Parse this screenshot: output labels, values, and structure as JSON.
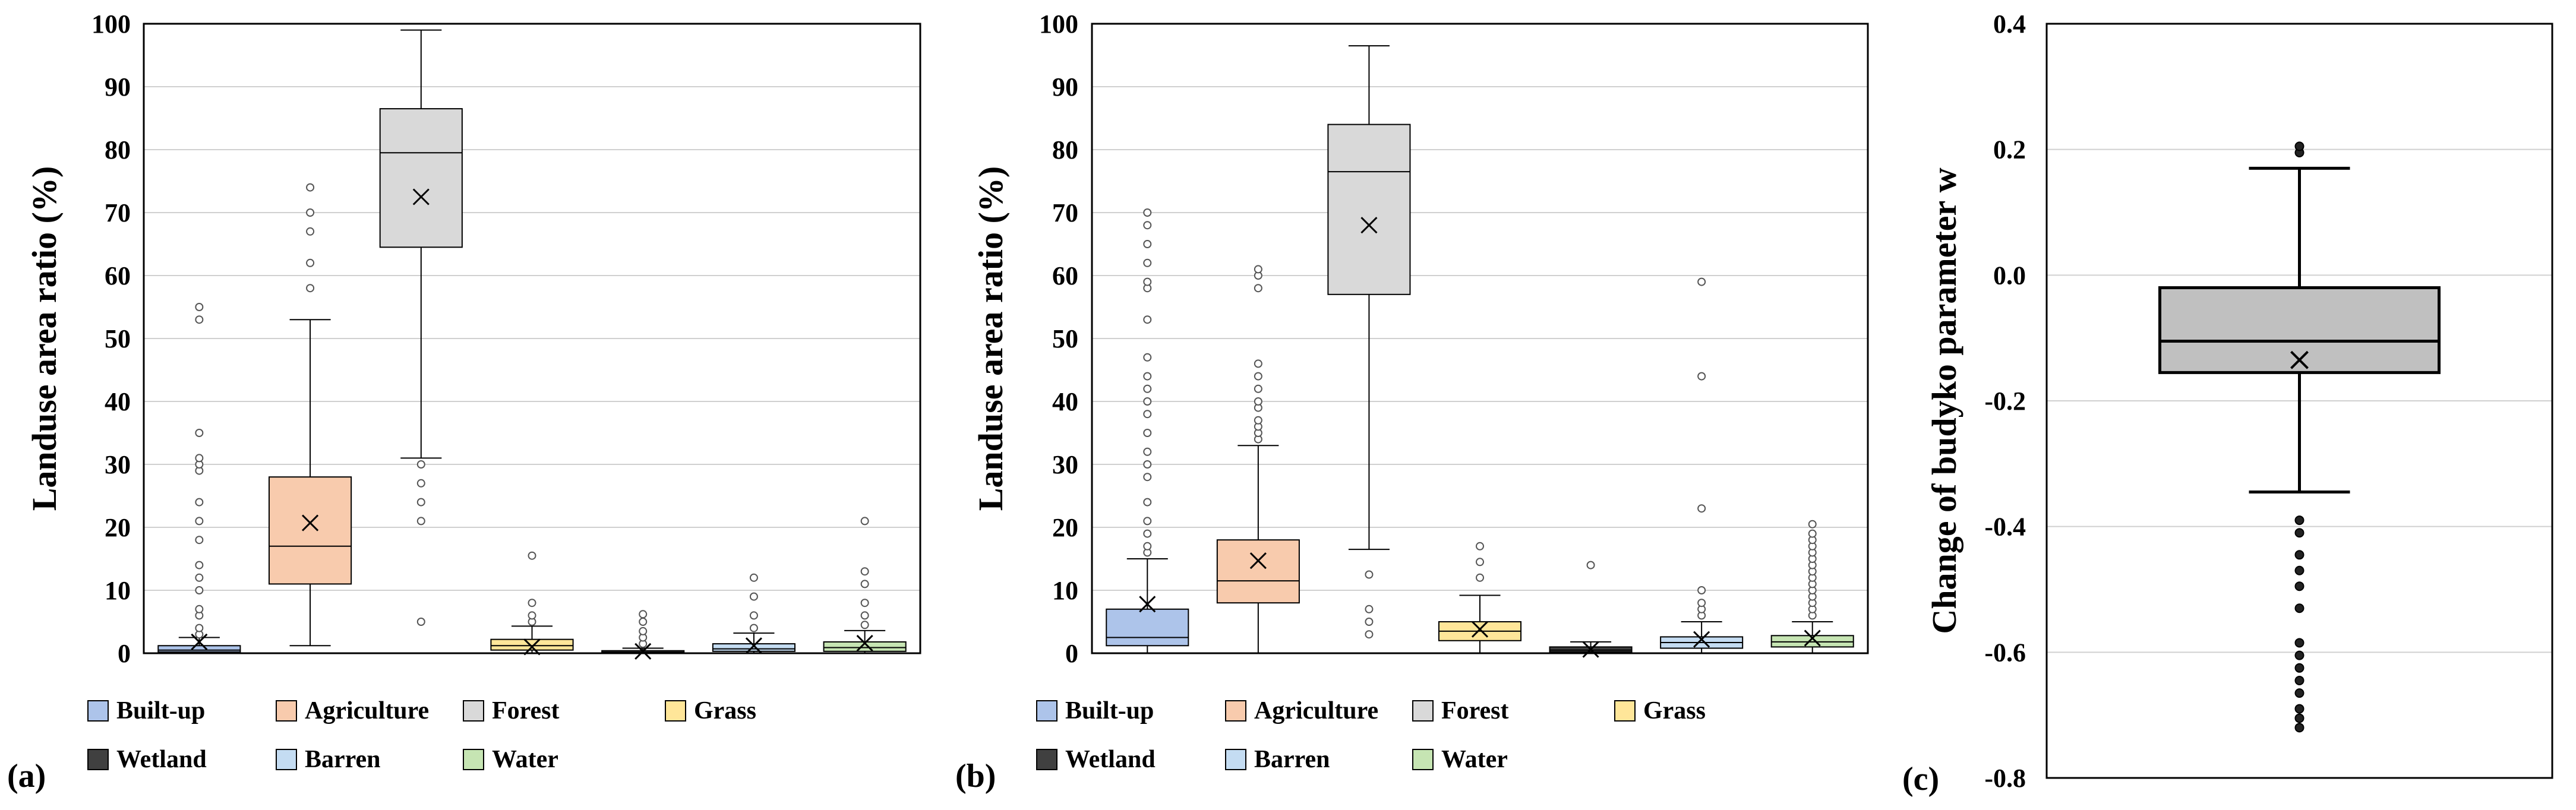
{
  "colors": {
    "Built-up": "#adc4ea",
    "Agriculture": "#f8cbad",
    "Forest": "#d9d9d9",
    "Grass": "#ffe699",
    "Wetland": "#404040",
    "Barren": "#c4dcf2",
    "Water": "#c6e5b3",
    "w_box": "#c0c0c0"
  },
  "chart_data": [
    {
      "panel_label": "(a)",
      "type": "box",
      "ylabel": "Landuse area ratio (%)",
      "ylim": [
        0,
        100
      ],
      "yticks": [
        0,
        10,
        20,
        30,
        40,
        50,
        60,
        70,
        80,
        90,
        100
      ],
      "grid": true,
      "legend_position": "bottom",
      "legend": [
        "Built-up",
        "Agriculture",
        "Forest",
        "Grass",
        "Wetland",
        "Barren",
        "Water"
      ],
      "series": [
        {
          "name": "Built-up",
          "min": 0,
          "q1": 0.2,
          "median": 0.5,
          "q3": 1.2,
          "max": 2.5,
          "mean": 1.8,
          "outliers": [
            3,
            4,
            6,
            7,
            10,
            12,
            14,
            18,
            21,
            24,
            29,
            30,
            31,
            35,
            53,
            55
          ]
        },
        {
          "name": "Agriculture",
          "min": 1.2,
          "q1": 11,
          "median": 17,
          "q3": 28,
          "max": 53,
          "mean": 20.7,
          "outliers": [
            58,
            62,
            67,
            70,
            74
          ]
        },
        {
          "name": "Forest",
          "min": 31,
          "q1": 64.5,
          "median": 79.5,
          "q3": 86.5,
          "max": 99,
          "mean": 72.5,
          "outliers": [
            5,
            21,
            24,
            27,
            30
          ]
        },
        {
          "name": "Grass",
          "min": 0,
          "q1": 0.5,
          "median": 1.2,
          "q3": 2.2,
          "max": 4.3,
          "mean": 1.0,
          "outliers": [
            5,
            6,
            8,
            15.5
          ]
        },
        {
          "name": "Wetland",
          "min": 0,
          "q1": 0.05,
          "median": 0.15,
          "q3": 0.4,
          "max": 0.8,
          "mean": 0.3,
          "outliers": [
            1.5,
            2.5,
            3.5,
            5,
            6.2
          ]
        },
        {
          "name": "Barren",
          "min": 0,
          "q1": 0.3,
          "median": 0.7,
          "q3": 1.5,
          "max": 3.2,
          "mean": 1.2,
          "outliers": [
            4,
            6,
            9,
            12
          ]
        },
        {
          "name": "Water",
          "min": 0,
          "q1": 0.3,
          "median": 0.9,
          "q3": 1.8,
          "max": 3.6,
          "mean": 1.6,
          "outliers": [
            4.5,
            6,
            8,
            11,
            13,
            21
          ]
        }
      ]
    },
    {
      "panel_label": "(b)",
      "type": "box",
      "ylabel": "Landuse area ratio (%)",
      "ylim": [
        0,
        100
      ],
      "yticks": [
        0,
        10,
        20,
        30,
        40,
        50,
        60,
        70,
        80,
        90,
        100
      ],
      "grid": true,
      "legend_position": "bottom",
      "legend": [
        "Built-up",
        "Agriculture",
        "Forest",
        "Grass",
        "Wetland",
        "Barren",
        "Water"
      ],
      "series": [
        {
          "name": "Built-up",
          "min": 0,
          "q1": 1.2,
          "median": 2.5,
          "q3": 7,
          "max": 15,
          "mean": 7.8,
          "outliers": [
            16,
            17,
            19,
            21,
            24,
            28,
            30,
            32,
            35,
            38,
            40,
            42,
            44,
            47,
            53,
            58,
            59,
            62,
            65,
            68,
            70
          ]
        },
        {
          "name": "Agriculture",
          "min": 0,
          "q1": 8,
          "median": 11.5,
          "q3": 18,
          "max": 33,
          "mean": 14.7,
          "outliers": [
            34,
            35,
            36,
            37,
            39,
            40,
            42,
            44,
            46,
            58,
            60,
            61
          ]
        },
        {
          "name": "Forest",
          "min": 16.5,
          "q1": 57,
          "median": 76.5,
          "q3": 84,
          "max": 96.5,
          "mean": 68,
          "outliers": [
            3,
            5,
            7,
            12.5
          ]
        },
        {
          "name": "Grass",
          "min": 0,
          "q1": 2,
          "median": 3.5,
          "q3": 5,
          "max": 9.2,
          "mean": 3.8,
          "outliers": [
            12,
            14.5,
            17
          ]
        },
        {
          "name": "Wetland",
          "min": 0,
          "q1": 0.2,
          "median": 0.5,
          "q3": 1.0,
          "max": 1.8,
          "mean": 0.6,
          "outliers": [
            14
          ]
        },
        {
          "name": "Barren",
          "min": 0,
          "q1": 0.8,
          "median": 1.7,
          "q3": 2.6,
          "max": 5,
          "mean": 2.2,
          "outliers": [
            6,
            7,
            8,
            10,
            23,
            44,
            59
          ]
        },
        {
          "name": "Water",
          "min": 0,
          "q1": 1,
          "median": 1.8,
          "q3": 2.8,
          "max": 5,
          "mean": 2.4,
          "outliers": [
            6,
            7,
            8,
            9,
            10,
            11,
            12,
            13,
            14,
            15,
            16,
            17,
            18,
            19,
            20.5
          ]
        }
      ]
    },
    {
      "panel_label": "(c)",
      "type": "box",
      "ylabel": "Change of budyko parameter w",
      "ylim": [
        -0.8,
        0.4
      ],
      "yticks": [
        -0.8,
        -0.6,
        -0.4,
        -0.2,
        0.0,
        0.2,
        0.4
      ],
      "ytick_labels": [
        "-0.8",
        "-0.6",
        "-0.4",
        "-0.2",
        "0.0",
        "0.2",
        "0.4"
      ],
      "grid": true,
      "series": [
        {
          "min": -0.345,
          "q1": -0.155,
          "median": -0.105,
          "q3": -0.02,
          "max": 0.17,
          "mean": -0.135,
          "outliers": [
            0.195,
            0.205,
            -0.39,
            -0.41,
            -0.445,
            -0.47,
            -0.495,
            -0.53,
            -0.585,
            -0.605,
            -0.625,
            -0.645,
            -0.665,
            -0.69,
            -0.705,
            -0.72
          ]
        }
      ]
    }
  ]
}
